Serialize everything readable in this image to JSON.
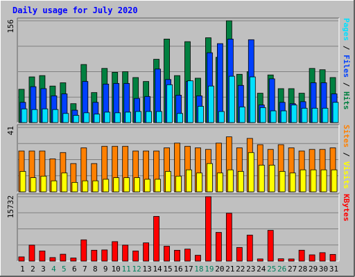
{
  "chart_data": {
    "type": "bar",
    "title": "Daily usage for July 2020",
    "categories": [
      "1",
      "2",
      "3",
      "4",
      "5",
      "6",
      "7",
      "8",
      "9",
      "10",
      "11",
      "12",
      "13",
      "14",
      "15",
      "16",
      "17",
      "18",
      "19",
      "20",
      "21",
      "22",
      "23",
      "24",
      "25",
      "26",
      "27",
      "28",
      "29",
      "30",
      "31"
    ],
    "weekend_days": [
      "4",
      "5",
      "11",
      "12",
      "18",
      "19",
      "25",
      "26"
    ],
    "panels": [
      {
        "id": "top",
        "ymax": 156,
        "ymax_label": "156",
        "right_labels": [
          "Pages",
          "Files",
          "Hits"
        ],
        "series": [
          {
            "name": "Hits",
            "color": "#008040",
            "values": [
              51,
              70,
              72,
              56,
              61,
              29,
              89,
              46,
              83,
              77,
              78,
              69,
              63,
              97,
              128,
              72,
              124,
              68,
              130,
              100,
              156,
              74,
              78,
              45,
              73,
              52,
              52,
              45,
              83,
              81,
              69
            ]
          },
          {
            "name": "Files",
            "color": "#0040ff",
            "values": [
              31,
              55,
              52,
              41,
              44,
              19,
              63,
              31,
              59,
              60,
              60,
              37,
              40,
              82,
              66,
              42,
              63,
              41,
              107,
              121,
              128,
              57,
              127,
              27,
              67,
              31,
              29,
              32,
              61,
              61,
              44
            ]
          },
          {
            "name": "Pages",
            "color": "#00e0ff",
            "values": [
              21,
              20,
              21,
              20,
              14,
              11,
              15,
              13,
              16,
              15,
              16,
              17,
              17,
              17,
              58,
              14,
              64,
              25,
              56,
              17,
              71,
              24,
              70,
              23,
              18,
              18,
              27,
              22,
              22,
              22,
              31
            ]
          }
        ]
      },
      {
        "id": "mid",
        "ymax": 41,
        "ymax_label": "41",
        "right_labels": [
          "Sites",
          "Visits"
        ],
        "series": [
          {
            "name": "Visits",
            "color": "#ff8000",
            "values": [
              26,
              26,
              26,
              21,
              25,
              18,
              28,
              18,
              29,
              29,
              29,
              26,
              26,
              26,
              28,
              31,
              29,
              28,
              27,
              31,
              35,
              28,
              34,
              30,
              27,
              30,
              28,
              26,
              27,
              27,
              28
            ]
          },
          {
            "name": "Sites",
            "color": "#ffff00",
            "values": [
              13,
              9,
              10,
              7,
              12,
              6,
              7,
              7,
              8,
              9,
              9,
              9,
              8,
              8,
              13,
              10,
              14,
              12,
              18,
              12,
              14,
              13,
              25,
              17,
              17,
              13,
              12,
              14,
              14,
              14,
              14
            ]
          }
        ]
      },
      {
        "id": "bot",
        "ymax": 15732,
        "ymax_label": "15732",
        "right_labels": [
          "KBytes"
        ],
        "series": [
          {
            "name": "KBytes",
            "color": "#ff0000",
            "values": [
              1025,
              3900,
              2474,
              860,
              1678,
              754,
              5191,
              2654,
              2726,
              4751,
              3900,
              2473,
              4454,
              10913,
              3632,
              2646,
              2929,
              1425,
              15732,
              7008,
              11682,
              3330,
              6345,
              526,
              7510,
              564,
              522,
              2657,
              1525,
              2055,
              1630
            ]
          }
        ]
      }
    ]
  },
  "colors": {
    "title": "#0000ff",
    "axis_label": "#000000",
    "weekend_label": "#00805c",
    "plot_bg": "#c0c0c0",
    "gridline": "#808080",
    "panel_label_colors": {
      "Pages": "#00e0ff",
      "Files": "#0040ff",
      "Hits": "#008040",
      "Sites": "#ff8000",
      "Visits": "#ffff00",
      "KBytes": "#ff0000"
    }
  }
}
